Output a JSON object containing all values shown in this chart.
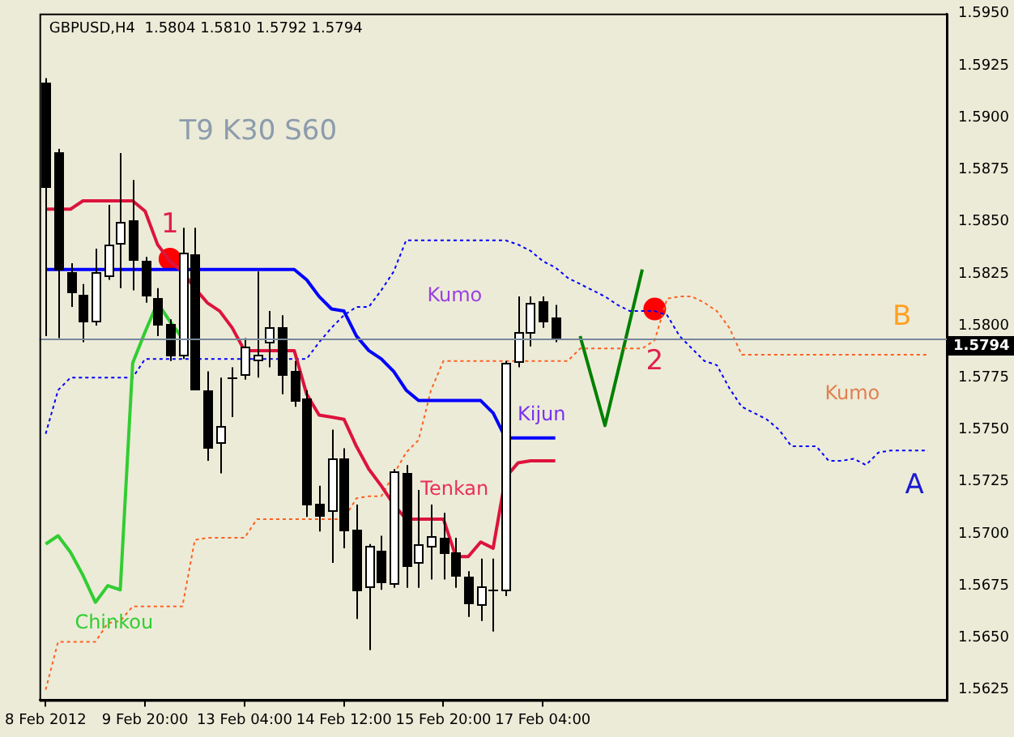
{
  "chart_data": {
    "type": "candlestick",
    "title": "GBPUSD,H4  1.5804 1.5810 1.5792 1.5794",
    "categories": [
      "8 Feb 2012",
      null,
      null,
      null,
      null,
      null,
      null,
      null,
      "9 Feb 20:00",
      null,
      null,
      null,
      null,
      null,
      null,
      null,
      "13 Feb 04:00",
      null,
      null,
      null,
      null,
      null,
      null,
      null,
      "14 Feb 12:00",
      null,
      null,
      null,
      null,
      null,
      null,
      null,
      "15 Feb 20:00",
      null,
      null,
      null,
      null,
      null,
      null,
      null,
      "17 Feb 04:00",
      null,
      null,
      null,
      null,
      null,
      null,
      null,
      null,
      null,
      null,
      null,
      null,
      null,
      null,
      null,
      null,
      null,
      null,
      null,
      null,
      null,
      null,
      null,
      null,
      null,
      null,
      null,
      null,
      null,
      null,
      null,
      null
    ],
    "ohlc": [
      [
        1.5917,
        1.5919,
        1.5795,
        1.5867
      ],
      [
        1.5883,
        1.5885,
        1.5794,
        1.5827
      ],
      [
        1.5826,
        1.583,
        1.5809,
        1.5816
      ],
      [
        1.5815,
        1.582,
        1.5792,
        1.5802
      ],
      [
        1.5802,
        1.5837,
        1.58,
        1.5826
      ],
      [
        1.5824,
        1.5858,
        1.5822,
        1.5839
      ],
      [
        1.584,
        1.5883,
        1.5818,
        1.585
      ],
      [
        1.5851,
        1.587,
        1.5817,
        1.5832
      ],
      [
        1.5831,
        1.5833,
        1.5811,
        1.5815
      ],
      [
        1.5813,
        1.5818,
        1.5795,
        1.5801
      ],
      [
        1.5801,
        1.5803,
        1.5783,
        1.5786
      ],
      [
        1.5786,
        1.5847,
        1.5784,
        1.5835
      ],
      [
        1.5834,
        1.5847,
        1.5769,
        1.577
      ],
      [
        1.5769,
        1.5778,
        1.5735,
        1.5742
      ],
      [
        1.5744,
        1.5775,
        1.5729,
        1.5752
      ],
      [
        1.5775,
        1.578,
        1.5756,
        1.5775
      ],
      [
        1.5777,
        1.5794,
        1.5774,
        1.579
      ],
      [
        1.5784,
        1.5826,
        1.5775,
        1.5786
      ],
      [
        1.5792,
        1.5807,
        1.578,
        1.5799
      ],
      [
        1.5799,
        1.5805,
        1.5767,
        1.5777
      ],
      [
        1.5778,
        1.5783,
        1.5761,
        1.5764
      ],
      [
        1.5765,
        1.5769,
        1.5708,
        1.5714
      ],
      [
        1.5714,
        1.5723,
        1.5701,
        1.5709
      ],
      [
        1.5711,
        1.575,
        1.5686,
        1.5736
      ],
      [
        1.5736,
        1.5741,
        1.5693,
        1.5702
      ],
      [
        1.5702,
        1.5714,
        1.5659,
        1.5673
      ],
      [
        1.5675,
        1.5695,
        1.5644,
        1.5694
      ],
      [
        1.5692,
        1.5699,
        1.5673,
        1.5677
      ],
      [
        1.5676,
        1.5731,
        1.5674,
        1.573
      ],
      [
        1.5729,
        1.5733,
        1.5674,
        1.5685
      ],
      [
        1.5686,
        1.5721,
        1.5674,
        1.5695
      ],
      [
        1.5694,
        1.5714,
        1.5678,
        1.5699
      ],
      [
        1.5698,
        1.571,
        1.5678,
        1.5691
      ],
      [
        1.5691,
        1.5698,
        1.5674,
        1.568
      ],
      [
        1.5679,
        1.5682,
        1.566,
        1.5667
      ],
      [
        1.5666,
        1.5688,
        1.5658,
        1.5675
      ],
      [
        1.5673,
        1.5688,
        1.5653,
        1.5673
      ],
      [
        1.5673,
        1.5783,
        1.567,
        1.5782
      ],
      [
        1.5783,
        1.5814,
        1.578,
        1.5797
      ],
      [
        1.5797,
        1.5814,
        1.579,
        1.5811
      ],
      [
        1.5812,
        1.5814,
        1.5799,
        1.5802
      ],
      [
        1.5804,
        1.581,
        1.5792,
        1.5794
      ],
      null,
      null,
      null,
      null,
      null,
      null,
      null,
      null,
      null,
      null,
      null,
      null,
      null,
      null,
      null,
      null,
      null,
      null,
      null,
      null,
      null,
      null,
      null,
      null,
      null,
      null,
      null,
      null,
      null,
      null,
      null
    ],
    "series": [
      {
        "name": "Tenkan",
        "type": "line",
        "color": "#dc143c",
        "marker": "none",
        "line_style": "solid",
        "values": [
          1.5856,
          1.5856,
          1.5856,
          1.586,
          1.586,
          1.586,
          1.586,
          1.586,
          1.5855,
          1.5839,
          1.5831,
          1.5826,
          1.5818,
          1.5811,
          1.5807,
          1.5799,
          1.5788,
          1.5788,
          1.5788,
          1.5788,
          1.5788,
          1.5767,
          1.5757,
          1.5756,
          1.5755,
          1.5742,
          1.5731,
          1.5723,
          1.5714,
          1.5707,
          1.5707,
          1.5707,
          1.5707,
          1.5689,
          1.5689,
          1.5696,
          1.5693,
          1.5727,
          1.5734,
          1.5735,
          1.5735,
          1.5735,
          null,
          null,
          null,
          null,
          null,
          null,
          null,
          null,
          null,
          null,
          null,
          null,
          null,
          null,
          null,
          null,
          null,
          null,
          null,
          null,
          null,
          null,
          null,
          null,
          null,
          null,
          null,
          null,
          null,
          null,
          null
        ]
      },
      {
        "name": "Kijun",
        "type": "line",
        "color": "#0000ff",
        "marker": "none",
        "line_style": "solid",
        "values": [
          1.5827,
          1.5827,
          1.5827,
          1.5827,
          1.5827,
          1.5827,
          1.5827,
          1.5827,
          1.5827,
          1.5827,
          1.5827,
          1.5827,
          1.5827,
          1.5827,
          1.5827,
          1.5827,
          1.5827,
          1.5827,
          1.5827,
          1.5827,
          1.5827,
          1.5822,
          1.5814,
          1.5808,
          1.5807,
          1.5795,
          1.5788,
          1.5784,
          1.5778,
          1.5769,
          1.5764,
          1.5764,
          1.5764,
          1.5764,
          1.5764,
          1.5764,
          1.5758,
          1.5746,
          1.5746,
          1.5746,
          1.5746,
          1.5746,
          null,
          null,
          null,
          null,
          null,
          null,
          null,
          null,
          null,
          null,
          null,
          null,
          null,
          null,
          null,
          null,
          null,
          null,
          null,
          null,
          null,
          null,
          null,
          null,
          null,
          null,
          null,
          null,
          null,
          null,
          null
        ]
      },
      {
        "name": "Chinkou",
        "type": "line",
        "color": "#32cd32",
        "marker": "none",
        "line_style": "solid",
        "values": [
          1.5695,
          1.5699,
          1.5691,
          1.568,
          1.5667,
          1.5675,
          1.5673,
          1.5782,
          1.5797,
          1.5811,
          1.5802,
          1.5794,
          null,
          null,
          null,
          null,
          null,
          null,
          null,
          null,
          null,
          null,
          null,
          null,
          null,
          null,
          null,
          null,
          null,
          null,
          null,
          null,
          null,
          null,
          null,
          null,
          null,
          null,
          null,
          null,
          null,
          null,
          null,
          null,
          null,
          null,
          null,
          null,
          null,
          null,
          null,
          null,
          null,
          null,
          null,
          null,
          null,
          null,
          null,
          null,
          null,
          null,
          null,
          null,
          null,
          null,
          null,
          null,
          null,
          null,
          null,
          null,
          null
        ]
      },
      {
        "name": "A",
        "type": "line",
        "color": "#0000ff",
        "marker": "none",
        "line_style": "dotted",
        "values": [
          1.5748,
          1.5769,
          1.5775,
          1.5775,
          1.5775,
          1.5775,
          1.5775,
          1.5775,
          1.5784,
          1.5784,
          1.5784,
          1.5784,
          1.5784,
          1.5784,
          1.5784,
          1.5784,
          1.5784,
          1.5784,
          1.5784,
          1.5784,
          1.5784,
          1.5784,
          1.5792,
          1.5799,
          1.5805,
          1.5809,
          1.5809,
          1.5817,
          1.5826,
          1.5841,
          1.5841,
          1.5841,
          1.5841,
          1.5841,
          1.5841,
          1.5841,
          1.5841,
          1.5841,
          1.5839,
          1.5836,
          1.5831,
          1.5828,
          1.5823,
          1.582,
          1.5817,
          1.5814,
          1.581,
          1.5807,
          1.5807,
          1.5807,
          1.5805,
          1.5795,
          1.5789,
          1.5783,
          1.5781,
          1.577,
          1.5761,
          1.5758,
          1.5755,
          1.575,
          1.5742,
          1.5742,
          1.5742,
          1.5735,
          1.5735,
          1.5736,
          1.5733,
          1.5739,
          1.574,
          1.574,
          1.574,
          1.574,
          null
        ]
      },
      {
        "name": "B",
        "type": "line",
        "color": "#ff6020",
        "marker": "none",
        "line_style": "dotted",
        "values": [
          1.5625,
          1.5648,
          1.5648,
          1.5648,
          1.5648,
          1.5657,
          1.5658,
          1.5665,
          1.5665,
          1.5665,
          1.5665,
          1.5665,
          1.5697,
          1.5698,
          1.5698,
          1.5698,
          1.5698,
          1.5707,
          1.5707,
          1.5707,
          1.5707,
          1.5707,
          1.5707,
          1.5707,
          1.5707,
          1.5717,
          1.5718,
          1.5718,
          null,
          1.5739,
          1.5745,
          1.5769,
          1.5783,
          1.5783,
          1.5783,
          1.5783,
          1.5783,
          1.5783,
          1.5783,
          1.5783,
          1.5783,
          1.5783,
          1.5783,
          1.5789,
          1.5789,
          1.5789,
          1.5789,
          1.5789,
          1.5789,
          1.5793,
          1.5813,
          1.5814,
          1.5814,
          1.5811,
          1.5807,
          1.5799,
          1.5786,
          1.5786,
          1.5786,
          1.5786,
          1.5786,
          1.5786,
          1.5786,
          1.5786,
          1.5786,
          1.5786,
          1.5786,
          1.5786,
          1.5786,
          1.5786,
          1.5786,
          1.5786,
          null
        ]
      },
      {
        "type": "line",
        "color": "#008000",
        "marker": "none",
        "line_style": "solid",
        "values": [
          null,
          null,
          null,
          null,
          null,
          null,
          null,
          null,
          null,
          null,
          null,
          null,
          null,
          null,
          null,
          null,
          null,
          null,
          null,
          null,
          null,
          null,
          null,
          null,
          null,
          null,
          null,
          null,
          null,
          null,
          null,
          null,
          null,
          null,
          null,
          null,
          null,
          null,
          null,
          null,
          null,
          null,
          null,
          1.5795,
          null,
          1.5752,
          null,
          null,
          1.5827,
          null,
          null,
          null,
          null,
          null,
          null,
          null,
          null,
          null,
          null,
          null,
          null,
          null,
          null,
          null,
          null,
          null,
          null,
          null,
          null,
          null,
          null,
          null,
          null
        ]
      },
      {
        "type": "scatter",
        "color": "#ff0000",
        "marker": "circle",
        "values": [
          null,
          null,
          null,
          null,
          null,
          null,
          null,
          null,
          null,
          null,
          1.5832,
          null,
          null,
          null,
          null,
          null,
          null,
          null,
          null,
          null,
          null,
          null,
          null,
          null,
          null,
          null,
          null,
          null,
          null,
          null,
          null,
          null,
          null,
          null,
          null,
          null,
          null,
          null,
          null,
          null,
          null,
          null,
          null,
          null,
          null,
          null,
          null,
          null,
          null,
          1.5808,
          null,
          null,
          null,
          null,
          null,
          null,
          null,
          null,
          null,
          null,
          null,
          null,
          null,
          null,
          null,
          null,
          null,
          null,
          null,
          null,
          null,
          null,
          null
        ]
      }
    ],
    "ylim": [
      1.562,
      1.595
    ],
    "yticks": [
      {
        "value": 1.5625,
        "label": "1.5625"
      },
      {
        "value": 1.565,
        "label": "1.5650"
      },
      {
        "value": 1.5675,
        "label": "1.5675"
      },
      {
        "value": 1.57,
        "label": "1.5700"
      },
      {
        "value": 1.5725,
        "label": "1.5725"
      },
      {
        "value": 1.575,
        "label": "1.5750"
      },
      {
        "value": 1.5775,
        "label": "1.5775"
      },
      {
        "value": 1.58,
        "label": "1.5800"
      },
      {
        "value": 1.5825,
        "label": "1.5825"
      },
      {
        "value": 1.585,
        "label": "1.5850"
      },
      {
        "value": 1.5875,
        "label": "1.5875"
      },
      {
        "value": 1.59,
        "label": "1.5900"
      },
      {
        "value": 1.5925,
        "label": "1.5925"
      },
      {
        "value": 1.595,
        "label": "1.5950"
      }
    ],
    "ref_lines": [
      {
        "axis": "y",
        "value": 1.5794,
        "label": "1.5794",
        "color": "#778899"
      }
    ],
    "annotations": [
      "T9 K30 S60",
      "Kumo",
      "Kumo",
      {
        "text": "1",
        "y": 1.5832
      },
      {
        "text": "2",
        "y": 1.5808
      }
    ]
  }
}
